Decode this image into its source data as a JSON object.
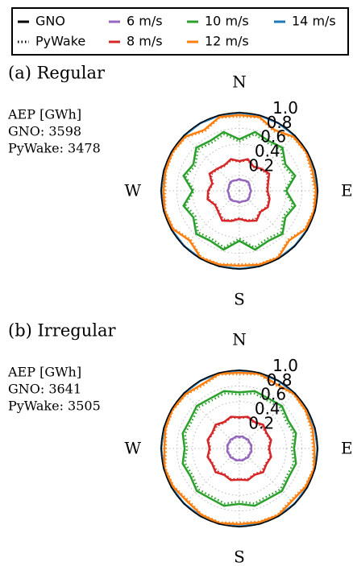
{
  "legend_models": [
    {
      "name": "GNO",
      "dash": "solid"
    },
    {
      "name": "PyWake",
      "dash": "dotted"
    }
  ],
  "chart_data": [
    {
      "type": "polar",
      "title": "(a) Regular",
      "annotation": [
        "AEP [GWh]",
        "GNO: 3598",
        "PyWake: 3478"
      ],
      "direction_labels": [
        "N",
        "E",
        "S",
        "W"
      ],
      "theta": [
        0,
        15,
        30,
        45,
        60,
        75,
        90,
        105,
        120,
        135,
        150,
        165,
        180,
        195,
        210,
        225,
        240,
        255,
        270,
        285,
        300,
        315,
        330,
        345
      ],
      "rlim": [
        0,
        1
      ],
      "rticks": [
        0.2,
        0.4,
        0.6,
        0.8,
        {
          "value": 1,
          "label": "1.0"
        }
      ],
      "grid": true,
      "series": [
        {
          "name": "6 m/s",
          "color": "#9467bd",
          "values": [
            0.15,
            0.14,
            0.15,
            0.16,
            0.15,
            0.14,
            0.15,
            0.14,
            0.15,
            0.16,
            0.15,
            0.14,
            0.15,
            0.14,
            0.15,
            0.16,
            0.15,
            0.14,
            0.15,
            0.14,
            0.15,
            0.16,
            0.15,
            0.14
          ],
          "pywake_values": [
            0.14,
            0.14,
            0.15,
            0.15,
            0.14,
            0.14,
            0.15,
            0.14,
            0.14,
            0.15,
            0.15,
            0.14,
            0.14,
            0.14,
            0.15,
            0.15,
            0.14,
            0.14,
            0.15,
            0.14,
            0.14,
            0.15,
            0.15,
            0.14
          ]
        },
        {
          "name": "8 m/s",
          "color": "#d62728",
          "values": [
            0.38,
            0.42,
            0.36,
            0.4,
            0.44,
            0.38,
            0.36,
            0.4,
            0.42,
            0.38,
            0.44,
            0.4,
            0.36,
            0.4,
            0.44,
            0.38,
            0.36,
            0.42,
            0.4,
            0.36,
            0.44,
            0.4,
            0.38,
            0.42
          ],
          "pywake_values": [
            0.37,
            0.41,
            0.35,
            0.39,
            0.42,
            0.37,
            0.35,
            0.39,
            0.41,
            0.37,
            0.42,
            0.39,
            0.35,
            0.39,
            0.42,
            0.37,
            0.35,
            0.41,
            0.39,
            0.35,
            0.42,
            0.39,
            0.37,
            0.41
          ]
        },
        {
          "name": "10 m/s",
          "color": "#2ca02c",
          "values": [
            0.66,
            0.78,
            0.74,
            0.78,
            0.68,
            0.74,
            0.6,
            0.74,
            0.68,
            0.78,
            0.74,
            0.78,
            0.64,
            0.78,
            0.74,
            0.78,
            0.68,
            0.74,
            0.6,
            0.74,
            0.68,
            0.78,
            0.74,
            0.78
          ],
          "pywake_values": [
            0.63,
            0.75,
            0.71,
            0.75,
            0.65,
            0.71,
            0.58,
            0.71,
            0.65,
            0.75,
            0.71,
            0.75,
            0.61,
            0.75,
            0.71,
            0.75,
            0.65,
            0.71,
            0.58,
            0.71,
            0.65,
            0.75,
            0.71,
            0.75
          ]
        },
        {
          "name": "12 m/s",
          "color": "#ff7f0e",
          "values": [
            0.97,
            0.98,
            0.9,
            0.98,
            0.99,
            0.97,
            0.98,
            0.99,
            0.98,
            0.9,
            0.99,
            0.98,
            0.96,
            0.98,
            0.99,
            0.9,
            0.98,
            0.99,
            0.97,
            0.98,
            0.99,
            0.98,
            0.9,
            0.98
          ],
          "pywake_values": [
            0.95,
            0.97,
            0.88,
            0.97,
            0.98,
            0.95,
            0.96,
            0.98,
            0.97,
            0.88,
            0.98,
            0.97,
            0.94,
            0.97,
            0.98,
            0.88,
            0.97,
            0.98,
            0.95,
            0.97,
            0.98,
            0.97,
            0.88,
            0.97
          ]
        },
        {
          "name": "14 m/s",
          "color": "#1f77b4",
          "values": [
            1,
            1,
            1,
            1,
            1,
            1,
            1,
            1,
            1,
            1,
            1,
            1,
            1,
            1,
            1,
            1,
            1,
            1,
            1,
            1,
            1,
            1,
            1,
            1
          ],
          "pywake_values": [
            1,
            1,
            1,
            1,
            1,
            1,
            1,
            1,
            1,
            1,
            1,
            1,
            1,
            1,
            1,
            1,
            1,
            1,
            1,
            1,
            1,
            1,
            1,
            1
          ]
        }
      ]
    },
    {
      "type": "polar",
      "title": "(b) Irregular",
      "annotation": [
        "AEP [GWh]",
        "GNO: 3641",
        "PyWake: 3505"
      ],
      "direction_labels": [
        "N",
        "E",
        "S",
        "W"
      ],
      "theta": [
        0,
        15,
        30,
        45,
        60,
        75,
        90,
        105,
        120,
        135,
        150,
        165,
        180,
        195,
        210,
        225,
        240,
        255,
        270,
        285,
        300,
        315,
        330,
        345
      ],
      "rlim": [
        0,
        1
      ],
      "rticks": [
        0.2,
        0.4,
        0.6,
        0.8,
        {
          "value": 1,
          "label": "1.0"
        }
      ],
      "grid": true,
      "series": [
        {
          "name": "6 m/s",
          "color": "#9467bd",
          "values": [
            0.15,
            0.16,
            0.15,
            0.16,
            0.15,
            0.16,
            0.15,
            0.16,
            0.15,
            0.16,
            0.15,
            0.16,
            0.15,
            0.16,
            0.15,
            0.16,
            0.15,
            0.16,
            0.15,
            0.16,
            0.15,
            0.16,
            0.15,
            0.16
          ],
          "pywake_values": [
            0.14,
            0.15,
            0.14,
            0.15,
            0.14,
            0.15,
            0.14,
            0.15,
            0.14,
            0.15,
            0.14,
            0.15,
            0.14,
            0.15,
            0.14,
            0.15,
            0.14,
            0.15,
            0.14,
            0.15,
            0.14,
            0.15,
            0.14,
            0.15
          ]
        },
        {
          "name": "8 m/s",
          "color": "#d62728",
          "values": [
            0.4,
            0.42,
            0.39,
            0.43,
            0.4,
            0.42,
            0.38,
            0.42,
            0.4,
            0.43,
            0.39,
            0.42,
            0.4,
            0.42,
            0.39,
            0.43,
            0.4,
            0.42,
            0.38,
            0.42,
            0.4,
            0.43,
            0.39,
            0.42
          ],
          "pywake_values": [
            0.39,
            0.41,
            0.38,
            0.41,
            0.39,
            0.41,
            0.37,
            0.41,
            0.39,
            0.41,
            0.38,
            0.41,
            0.39,
            0.41,
            0.38,
            0.41,
            0.39,
            0.41,
            0.37,
            0.41,
            0.39,
            0.41,
            0.38,
            0.41
          ]
        },
        {
          "name": "10 m/s",
          "color": "#2ca02c",
          "values": [
            0.72,
            0.76,
            0.74,
            0.77,
            0.72,
            0.75,
            0.7,
            0.75,
            0.73,
            0.77,
            0.74,
            0.76,
            0.71,
            0.76,
            0.74,
            0.77,
            0.72,
            0.75,
            0.7,
            0.75,
            0.73,
            0.77,
            0.74,
            0.76
          ],
          "pywake_values": [
            0.69,
            0.73,
            0.71,
            0.74,
            0.69,
            0.72,
            0.67,
            0.72,
            0.7,
            0.74,
            0.71,
            0.73,
            0.68,
            0.73,
            0.71,
            0.74,
            0.69,
            0.72,
            0.67,
            0.72,
            0.7,
            0.74,
            0.71,
            0.73
          ]
        },
        {
          "name": "12 m/s",
          "color": "#ff7f0e",
          "values": [
            0.97,
            0.99,
            0.95,
            0.99,
            0.98,
            0.97,
            0.96,
            0.99,
            0.98,
            0.95,
            0.99,
            0.98,
            0.97,
            0.99,
            0.98,
            0.95,
            0.98,
            0.99,
            0.96,
            0.98,
            0.99,
            0.98,
            0.95,
            0.99
          ],
          "pywake_values": [
            0.95,
            0.98,
            0.93,
            0.98,
            0.97,
            0.95,
            0.94,
            0.98,
            0.97,
            0.93,
            0.98,
            0.97,
            0.95,
            0.98,
            0.97,
            0.93,
            0.97,
            0.98,
            0.94,
            0.97,
            0.98,
            0.97,
            0.93,
            0.98
          ]
        },
        {
          "name": "14 m/s",
          "color": "#1f77b4",
          "values": [
            1,
            1,
            1,
            1,
            1,
            1,
            1,
            1,
            1,
            1,
            1,
            1,
            1,
            1,
            1,
            1,
            1,
            1,
            1,
            1,
            1,
            1,
            1,
            1
          ],
          "pywake_values": [
            1,
            1,
            1,
            1,
            1,
            1,
            1,
            1,
            1,
            1,
            1,
            1,
            1,
            1,
            1,
            1,
            1,
            1,
            1,
            1,
            1,
            1,
            1,
            1
          ]
        }
      ]
    }
  ]
}
